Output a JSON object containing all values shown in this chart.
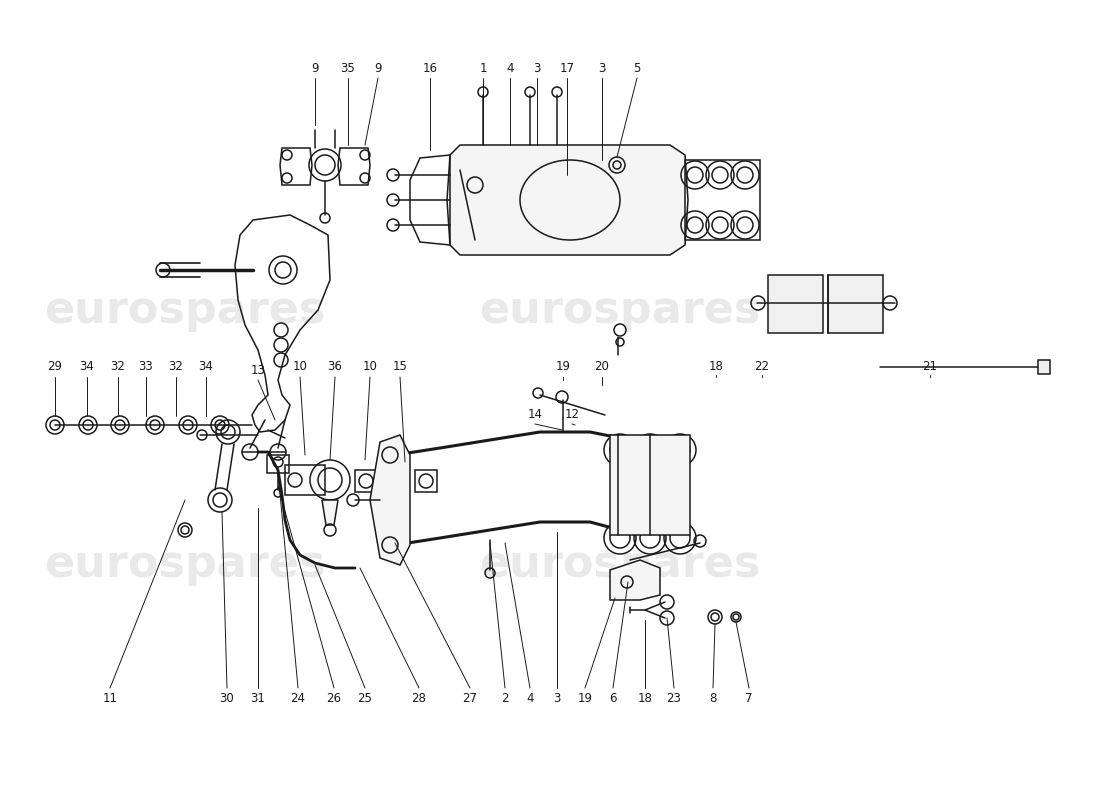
{
  "bg_color": "#ffffff",
  "line_color": "#1a1a1a",
  "lw": 1.1,
  "wm_color": "#d8d8d8",
  "wm_alpha": 0.55,
  "wm_size": 32,
  "labels_top": [
    [
      "9",
      315,
      68
    ],
    [
      "35",
      348,
      68
    ],
    [
      "9",
      378,
      68
    ],
    [
      "16",
      430,
      68
    ],
    [
      "1",
      483,
      68
    ],
    [
      "4",
      510,
      68
    ],
    [
      "3",
      537,
      68
    ],
    [
      "17",
      567,
      68
    ],
    [
      "3",
      602,
      68
    ],
    [
      "5",
      637,
      68
    ]
  ],
  "labels_mid": [
    [
      "13",
      258,
      370
    ],
    [
      "29",
      55,
      367
    ],
    [
      "34",
      87,
      367
    ],
    [
      "32",
      118,
      367
    ],
    [
      "33",
      146,
      367
    ],
    [
      "32",
      176,
      367
    ],
    [
      "34",
      206,
      367
    ],
    [
      "10",
      300,
      367
    ],
    [
      "36",
      335,
      367
    ],
    [
      "10",
      370,
      367
    ],
    [
      "15",
      400,
      367
    ],
    [
      "19",
      563,
      367
    ],
    [
      "20",
      602,
      367
    ],
    [
      "18",
      716,
      367
    ],
    [
      "22",
      762,
      367
    ],
    [
      "21",
      930,
      367
    ]
  ],
  "labels_mid2": [
    [
      "14",
      535,
      414
    ],
    [
      "12",
      572,
      414
    ]
  ],
  "labels_bot": [
    [
      "11",
      110,
      698
    ],
    [
      "30",
      227,
      698
    ],
    [
      "31",
      258,
      698
    ],
    [
      "24",
      298,
      698
    ],
    [
      "26",
      334,
      698
    ],
    [
      "25",
      365,
      698
    ],
    [
      "28",
      419,
      698
    ],
    [
      "27",
      470,
      698
    ],
    [
      "2",
      505,
      698
    ],
    [
      "4",
      530,
      698
    ],
    [
      "3",
      557,
      698
    ],
    [
      "19",
      585,
      698
    ],
    [
      "6",
      613,
      698
    ],
    [
      "18",
      645,
      698
    ],
    [
      "23",
      674,
      698
    ],
    [
      "8",
      713,
      698
    ],
    [
      "7",
      749,
      698
    ]
  ]
}
